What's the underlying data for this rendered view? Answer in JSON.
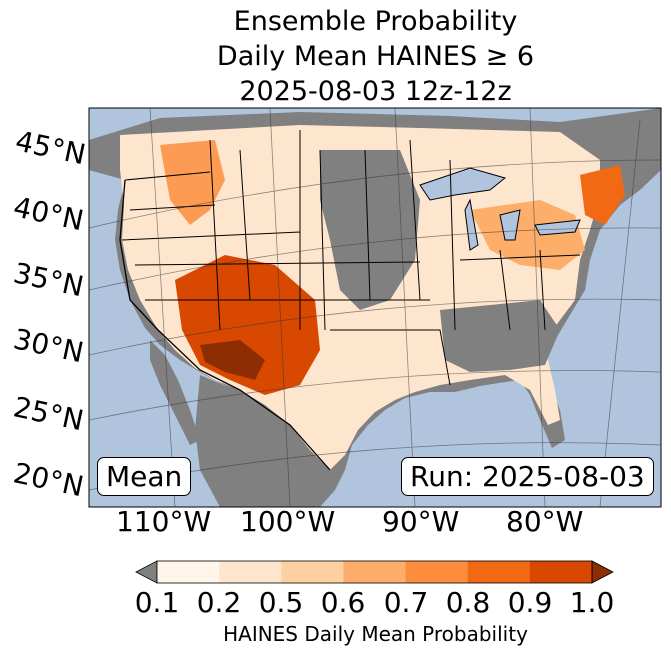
{
  "title": {
    "line1": "Ensemble Probability",
    "line2": "Daily Mean HAINES ≥ 6",
    "line3": "2025-08-03 12z-12z"
  },
  "map": {
    "region": "Contiguous United States",
    "ocean_color": "#b0c4de",
    "no_data_land_color": "#808080",
    "lat_labels": [
      "45°N",
      "40°N",
      "35°N",
      "30°N",
      "25°N",
      "20°N"
    ],
    "lon_labels": [
      "110°W",
      "100°W",
      "90°W",
      "80°W"
    ]
  },
  "annotations": {
    "left": "Mean",
    "right": "Run: 2025-08-03"
  },
  "colorbar": {
    "ticks": [
      "0.1",
      "0.2",
      "0.5",
      "0.6",
      "0.7",
      "0.8",
      "0.9",
      "1.0"
    ],
    "colors": [
      "#fff5eb",
      "#fee6ce",
      "#fdd0a2",
      "#fdae6b",
      "#fd8d3c",
      "#f16913",
      "#d94801",
      "#8c2d04"
    ],
    "under_color": "#808080",
    "label": "HAINES Daily Mean Probability"
  }
}
